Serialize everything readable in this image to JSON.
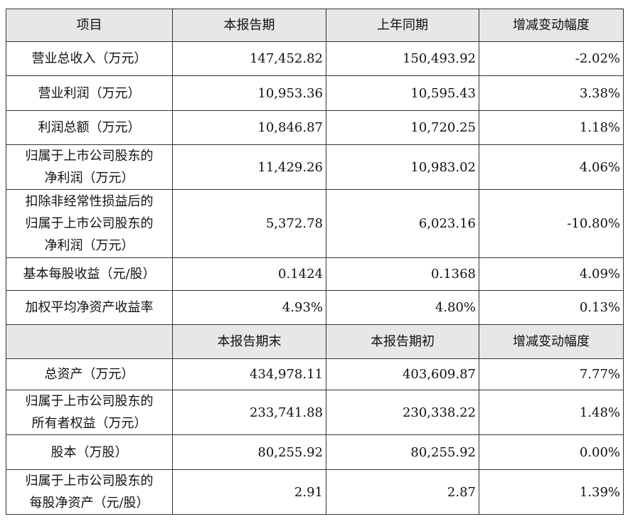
{
  "sections": [
    {
      "header": [
        "项目",
        "本报告期",
        "上年同期",
        "增减变动幅度"
      ],
      "rows": [
        {
          "label": [
            "营业总收入（万元）"
          ],
          "values": [
            "147,452.82",
            "150,493.92",
            "-2.02%"
          ]
        },
        {
          "label": [
            "营业利润（万元）"
          ],
          "values": [
            "10,953.36",
            "10,595.43",
            "3.38%"
          ]
        },
        {
          "label": [
            "利润总额（万元）"
          ],
          "values": [
            "10,846.87",
            "10,720.25",
            "1.18%"
          ]
        },
        {
          "label": [
            "归属于上市公司股东的",
            "净利润（万元）"
          ],
          "values": [
            "11,429.26",
            "10,983.02",
            "4.06%"
          ]
        },
        {
          "label": [
            "扣除非经常性损益后的",
            "归属于上市公司股东的",
            "净利润（万元）"
          ],
          "values": [
            "5,372.78",
            "6,023.16",
            "-10.80%"
          ]
        },
        {
          "label": [
            "基本每股收益（元/股）"
          ],
          "values": [
            "0.1424",
            "0.1368",
            "4.09%"
          ]
        },
        {
          "label": [
            "加权平均净资产收益率"
          ],
          "values": [
            "4.93%",
            "4.80%",
            "0.13%"
          ]
        }
      ]
    },
    {
      "header": [
        "本报告期末",
        "本报告期初",
        "增减变动幅度"
      ],
      "rows": [
        {
          "label": [
            "总资产（万元）"
          ],
          "values": [
            "434,978.11",
            "403,609.87",
            "7.77%"
          ]
        },
        {
          "label": [
            "归属于上市公司股东的",
            "所有者权益（万元）"
          ],
          "values": [
            "233,741.88",
            "230,338.22",
            "1.48%"
          ]
        },
        {
          "label": [
            "股本（万股）"
          ],
          "values": [
            "80,255.92",
            "80,255.92",
            "0.00%"
          ]
        },
        {
          "label": [
            "归属于上市公司股东的",
            "每股净资产（元/股）"
          ],
          "values": [
            "2.91",
            "2.87",
            "1.39%"
          ]
        }
      ]
    }
  ]
}
